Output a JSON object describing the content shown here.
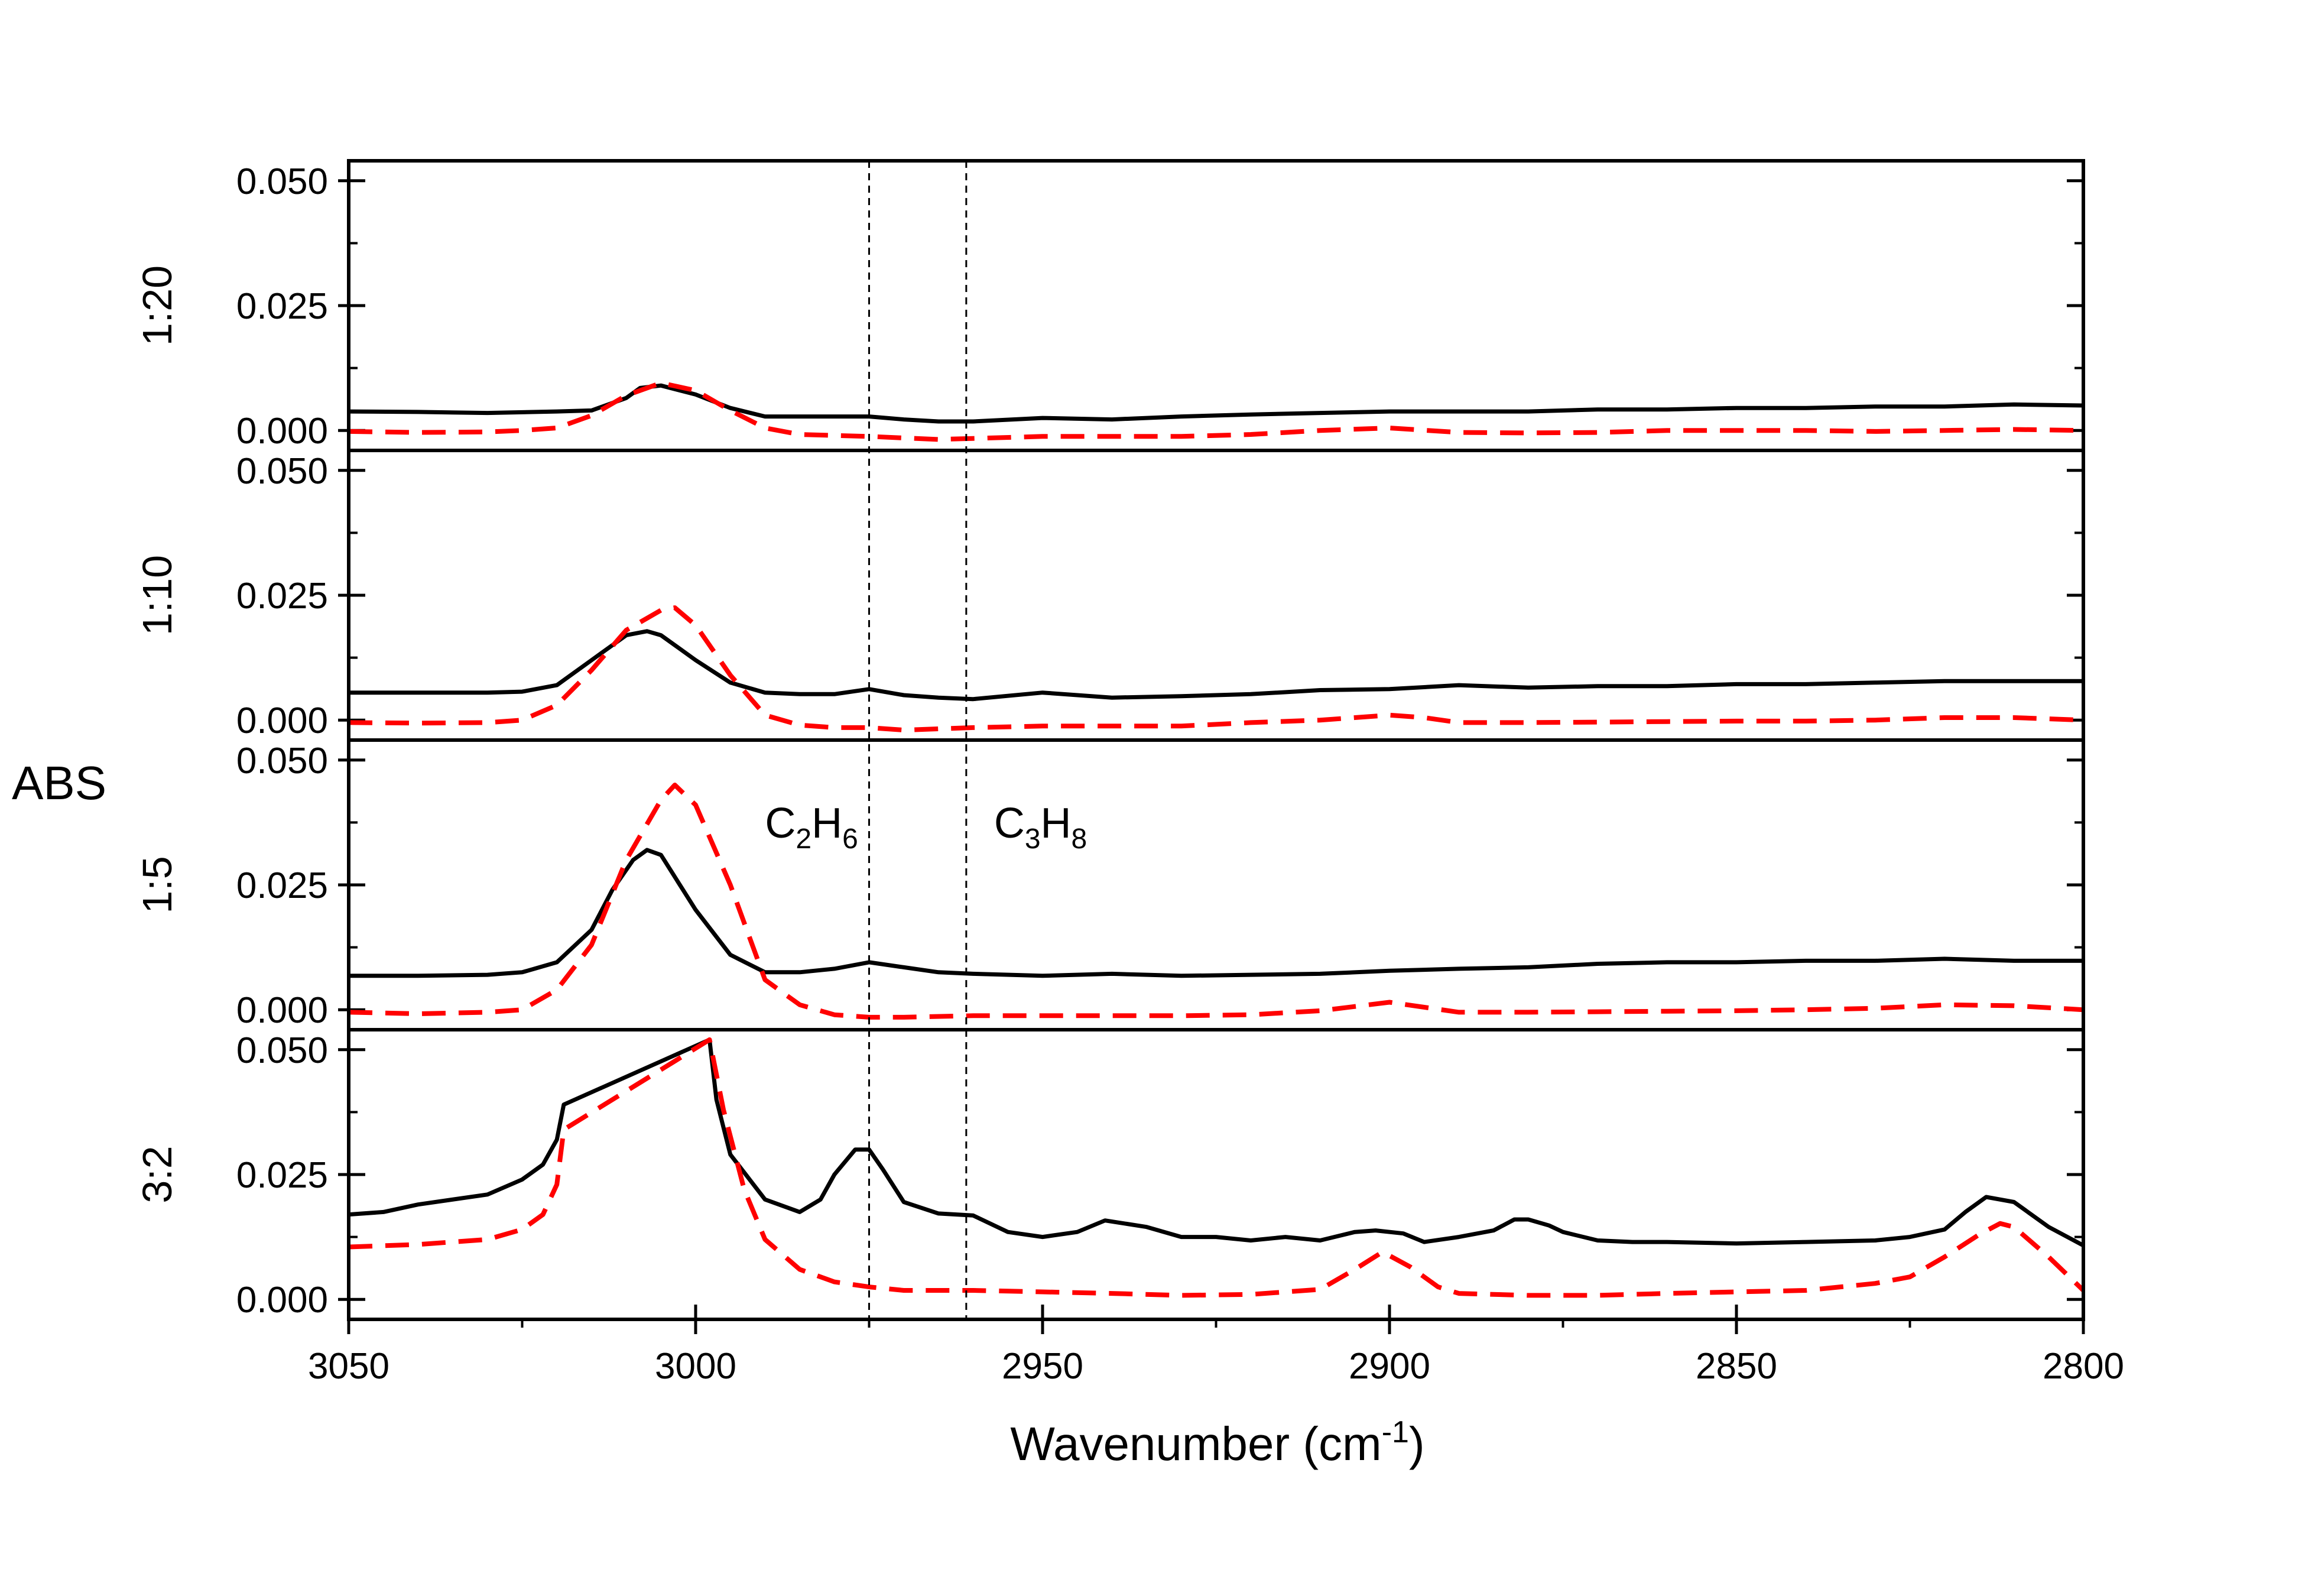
{
  "chart_data": {
    "type": "line",
    "xlabel": "Wavenumber (cm",
    "xlabel_sup": "-1",
    "xlabel_suffix": ")",
    "ylabel": "ABS",
    "xlim": [
      3050,
      2800
    ],
    "x_reversed": true,
    "x_ticks": [
      3050,
      3000,
      2950,
      2900,
      2850,
      2800
    ],
    "y_ticks": [
      0.0,
      0.025,
      0.05
    ],
    "y_tick_labels": [
      "0.000",
      "0.025",
      "0.050"
    ],
    "ylim": [
      -0.004,
      0.054
    ],
    "grid": false,
    "series_colors": [
      "#000000",
      "#ff0000"
    ],
    "series_styles": [
      "solid",
      "dashed"
    ],
    "vlines": [
      2975,
      2961
    ],
    "annotations": [
      {
        "main1": "C",
        "sub1": "2",
        "main2": "H",
        "sub2": "6",
        "x": 2990,
        "y": 0.038
      },
      {
        "main1": "C",
        "sub1": "3",
        "main2": "H",
        "sub2": "8",
        "x": 2957,
        "y": 0.038
      }
    ],
    "panels": [
      {
        "label": "1:20",
        "series": [
          {
            "x": [
              3050,
              3040,
              3030,
              3020,
              3015,
              3010,
              3008,
              3005,
              3000,
              2995,
              2990,
              2985,
              2980,
              2975,
              2970,
              2965,
              2960,
              2950,
              2940,
              2930,
              2920,
              2910,
              2900,
              2890,
              2880,
              2870,
              2860,
              2850,
              2840,
              2830,
              2820,
              2810,
              2800
            ],
            "y": [
              0.0038,
              0.0037,
              0.0035,
              0.0038,
              0.004,
              0.0065,
              0.0085,
              0.009,
              0.0072,
              0.0045,
              0.0028,
              0.0028,
              0.0028,
              0.0028,
              0.0022,
              0.0018,
              0.0018,
              0.0025,
              0.0022,
              0.0028,
              0.0032,
              0.0035,
              0.0038,
              0.0038,
              0.0038,
              0.0042,
              0.0042,
              0.0045,
              0.0045,
              0.0048,
              0.0048,
              0.0052,
              0.005
            ]
          },
          {
            "x": [
              3050,
              3040,
              3030,
              3025,
              3020,
              3015,
              3010,
              3005,
              3000,
              2995,
              2990,
              2985,
              2980,
              2975,
              2970,
              2965,
              2960,
              2950,
              2940,
              2930,
              2920,
              2910,
              2900,
              2890,
              2880,
              2870,
              2860,
              2850,
              2840,
              2830,
              2820,
              2810,
              2800
            ],
            "y": [
              -0.0002,
              -0.0004,
              -0.0003,
              0.0,
              0.0005,
              0.003,
              0.007,
              0.0095,
              0.008,
              0.004,
              0.0005,
              -0.0008,
              -0.001,
              -0.0012,
              -0.0015,
              -0.0018,
              -0.0016,
              -0.0012,
              -0.0012,
              -0.0012,
              -0.0008,
              0.0,
              0.0005,
              -0.0004,
              -0.0005,
              -0.0004,
              0.0,
              0.0,
              0.0,
              -0.0002,
              0.0,
              0.0002,
              0.0
            ]
          }
        ]
      },
      {
        "label": "1:10",
        "series": [
          {
            "x": [
              3050,
              3040,
              3030,
              3025,
              3020,
              3015,
              3010,
              3007,
              3005,
              3000,
              2995,
              2990,
              2985,
              2980,
              2975,
              2970,
              2965,
              2960,
              2950,
              2940,
              2930,
              2920,
              2910,
              2900,
              2890,
              2880,
              2870,
              2860,
              2850,
              2840,
              2830,
              2820,
              2810,
              2800
            ],
            "y": [
              0.0055,
              0.0055,
              0.0055,
              0.0057,
              0.007,
              0.012,
              0.017,
              0.0178,
              0.017,
              0.012,
              0.0075,
              0.0055,
              0.0052,
              0.0052,
              0.0062,
              0.005,
              0.0045,
              0.0042,
              0.0055,
              0.0045,
              0.0048,
              0.0052,
              0.006,
              0.0062,
              0.007,
              0.0065,
              0.0068,
              0.0068,
              0.0072,
              0.0072,
              0.0075,
              0.0078,
              0.0078,
              0.0078
            ]
          },
          {
            "x": [
              3050,
              3040,
              3030,
              3025,
              3020,
              3015,
              3010,
              3005,
              3003,
              3000,
              2995,
              2990,
              2985,
              2980,
              2975,
              2970,
              2960,
              2950,
              2940,
              2930,
              2920,
              2910,
              2900,
              2895,
              2890,
              2880,
              2870,
              2860,
              2850,
              2840,
              2830,
              2820,
              2810,
              2800
            ],
            "y": [
              -0.0005,
              -0.0006,
              -0.0005,
              0.0,
              0.003,
              0.01,
              0.018,
              0.022,
              0.0225,
              0.019,
              0.009,
              0.001,
              -0.001,
              -0.0015,
              -0.0015,
              -0.002,
              -0.0015,
              -0.0012,
              -0.0012,
              -0.0012,
              -0.0005,
              0.0,
              0.001,
              0.0005,
              -0.0005,
              -0.0005,
              -0.0004,
              -0.0003,
              -0.0002,
              -0.0002,
              0.0,
              0.0005,
              0.0005,
              0.0
            ]
          }
        ]
      },
      {
        "label": "1:5",
        "series": [
          {
            "x": [
              3050,
              3040,
              3030,
              3025,
              3020,
              3015,
              3012,
              3009,
              3007,
              3005,
              3000,
              2995,
              2990,
              2985,
              2980,
              2975,
              2970,
              2965,
              2960,
              2950,
              2940,
              2930,
              2920,
              2910,
              2900,
              2890,
              2880,
              2870,
              2860,
              2850,
              2840,
              2830,
              2820,
              2810,
              2800
            ],
            "y": [
              0.0068,
              0.0068,
              0.007,
              0.0075,
              0.0095,
              0.016,
              0.024,
              0.03,
              0.032,
              0.031,
              0.02,
              0.011,
              0.0075,
              0.0075,
              0.0082,
              0.0095,
              0.0085,
              0.0075,
              0.0072,
              0.0068,
              0.0072,
              0.0068,
              0.007,
              0.0072,
              0.0078,
              0.0082,
              0.0085,
              0.0092,
              0.0095,
              0.0095,
              0.0098,
              0.0098,
              0.0102,
              0.0098,
              0.0098
            ]
          },
          {
            "x": [
              3050,
              3040,
              3030,
              3025,
              3020,
              3015,
              3010,
              3005,
              3003,
              3000,
              2995,
              2990,
              2985,
              2980,
              2975,
              2970,
              2960,
              2950,
              2940,
              2930,
              2920,
              2910,
              2900,
              2890,
              2880,
              2870,
              2860,
              2850,
              2840,
              2830,
              2820,
              2810,
              2800
            ],
            "y": [
              -0.0005,
              -0.0008,
              -0.0005,
              0.0,
              0.004,
              0.013,
              0.03,
              0.042,
              0.045,
              0.041,
              0.025,
              0.006,
              0.001,
              -0.001,
              -0.0015,
              -0.0015,
              -0.0012,
              -0.0012,
              -0.0012,
              -0.0012,
              -0.001,
              -0.0002,
              0.0015,
              -0.0005,
              -0.0005,
              -0.0004,
              -0.0003,
              -0.0002,
              0.0,
              0.0003,
              0.001,
              0.0008,
              0.0
            ]
          }
        ]
      },
      {
        "label": "3:2",
        "series": [
          {
            "x": [
              3050,
              3045,
              3040,
              3030,
              3025,
              3022,
              3020,
              3019,
              2998,
              2997,
              2995,
              2990,
              2985,
              2982,
              2980,
              2977,
              2975,
              2973,
              2970,
              2965,
              2960,
              2955,
              2950,
              2945,
              2941,
              2935,
              2930,
              2925,
              2920,
              2915,
              2910,
              2905,
              2902,
              2898,
              2895,
              2890,
              2885,
              2882,
              2880,
              2877,
              2875,
              2870,
              2865,
              2860,
              2850,
              2840,
              2830,
              2825,
              2820,
              2817,
              2814,
              2810,
              2805,
              2800
            ],
            "y": [
              0.017,
              0.0175,
              0.019,
              0.021,
              0.024,
              0.027,
              0.032,
              0.039,
              0.052,
              0.04,
              0.029,
              0.02,
              0.0175,
              0.02,
              0.025,
              0.03,
              0.03,
              0.026,
              0.0195,
              0.0172,
              0.0168,
              0.0135,
              0.0125,
              0.0135,
              0.0158,
              0.0145,
              0.0125,
              0.0125,
              0.0118,
              0.0125,
              0.0118,
              0.0135,
              0.0138,
              0.0132,
              0.0115,
              0.0125,
              0.0138,
              0.016,
              0.016,
              0.0148,
              0.0135,
              0.0118,
              0.0115,
              0.0115,
              0.0112,
              0.0115,
              0.0118,
              0.0125,
              0.014,
              0.0175,
              0.0205,
              0.0195,
              0.0145,
              0.0108
            ]
          },
          {
            "x": [
              3050,
              3040,
              3030,
              3025,
              3022,
              3020,
              3019,
              2998,
              2996,
              2993,
              2990,
              2985,
              2980,
              2975,
              2970,
              2960,
              2950,
              2940,
              2930,
              2920,
              2910,
              2905,
              2901,
              2897,
              2893,
              2890,
              2880,
              2870,
              2860,
              2850,
              2840,
              2830,
              2825,
              2820,
              2815,
              2812,
              2810,
              2805,
              2800
            ],
            "y": [
              0.0105,
              0.011,
              0.012,
              0.014,
              0.017,
              0.023,
              0.034,
              0.052,
              0.038,
              0.022,
              0.012,
              0.006,
              0.0035,
              0.0025,
              0.0018,
              0.0018,
              0.0015,
              0.0012,
              0.0008,
              0.001,
              0.002,
              0.006,
              0.0095,
              0.0065,
              0.0025,
              0.0012,
              0.0008,
              0.0008,
              0.0012,
              0.0015,
              0.0018,
              0.0032,
              0.0045,
              0.0085,
              0.013,
              0.0152,
              0.0145,
              0.0085,
              0.0018
            ]
          }
        ]
      }
    ]
  }
}
